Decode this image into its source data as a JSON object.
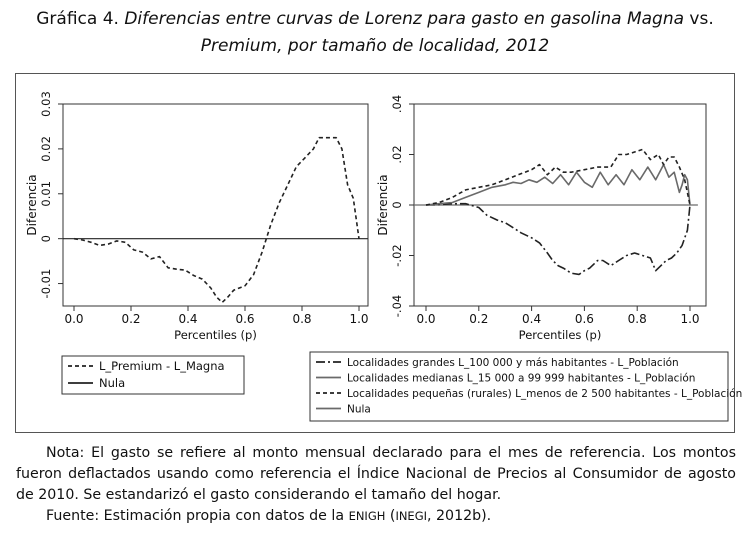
{
  "title": {
    "lead": "Gráfica 4.",
    "italic_a": "Diferencias entre curvas de Lorenz para gasto en gasolina Magna",
    "mid": "vs.",
    "italic_b": "Premium, por tamaño de localidad, 2012"
  },
  "chart_data": [
    {
      "type": "line",
      "xlabel": "Percentiles (p)",
      "ylabel": "Diferencia",
      "xlim": [
        0,
        1
      ],
      "ylim": [
        -0.015,
        0.03
      ],
      "x_ticks": [
        "0.0",
        "0.2",
        "0.4",
        "0.6",
        "0.8",
        "1.0"
      ],
      "y_ticks": [
        "-0.01",
        "0",
        "0.01",
        "0.02",
        "0.03"
      ],
      "legend_position": "bottom",
      "series": [
        {
          "name": "L_Premium - L_Magna",
          "style": "dashed",
          "color": "#222222",
          "x": [
            0,
            0.03,
            0.06,
            0.09,
            0.12,
            0.15,
            0.18,
            0.21,
            0.24,
            0.27,
            0.3,
            0.33,
            0.36,
            0.39,
            0.42,
            0.45,
            0.48,
            0.5,
            0.52,
            0.54,
            0.56,
            0.58,
            0.6,
            0.63,
            0.66,
            0.69,
            0.72,
            0.75,
            0.78,
            0.81,
            0.84,
            0.86,
            0.88,
            0.9,
            0.92,
            0.94,
            0.96,
            0.98,
            1.0
          ],
          "y": [
            0,
            -0.0003,
            -0.0008,
            -0.0015,
            -0.0012,
            -0.0005,
            -0.0008,
            -0.0025,
            -0.003,
            -0.0045,
            -0.004,
            -0.0065,
            -0.0068,
            -0.007,
            -0.0082,
            -0.009,
            -0.011,
            -0.013,
            -0.0142,
            -0.013,
            -0.0115,
            -0.011,
            -0.0105,
            -0.008,
            -0.003,
            0.003,
            0.008,
            0.012,
            0.016,
            0.018,
            0.02,
            0.0225,
            0.0225,
            0.0225,
            0.0225,
            0.02,
            0.012,
            0.009,
            0
          ]
        },
        {
          "name": "Nula",
          "style": "solid",
          "color": "#222222",
          "x": [
            0,
            1.03
          ],
          "y": [
            0,
            0
          ]
        }
      ]
    },
    {
      "type": "line",
      "xlabel": "Percentiles (p)",
      "ylabel": "Diferencia",
      "xlim": [
        0,
        1
      ],
      "ylim": [
        -0.04,
        0.04
      ],
      "x_ticks": [
        "0.0",
        "0.2",
        "0.4",
        "0.6",
        "0.8",
        "1.0"
      ],
      "y_ticks": [
        "-.04",
        "-.02",
        "0",
        ".02",
        ".04"
      ],
      "legend_position": "bottom",
      "series": [
        {
          "name": "Localidades grandes L_100 000 y más habitantes - L_Población",
          "style": "dashdot",
          "color": "#222222",
          "x": [
            0,
            0.05,
            0.1,
            0.15,
            0.2,
            0.23,
            0.27,
            0.3,
            0.33,
            0.36,
            0.4,
            0.43,
            0.46,
            0.48,
            0.5,
            0.52,
            0.55,
            0.58,
            0.6,
            0.62,
            0.65,
            0.67,
            0.7,
            0.73,
            0.76,
            0.79,
            0.82,
            0.85,
            0.87,
            0.89,
            0.91,
            0.93,
            0.95,
            0.97,
            0.99,
            1.0
          ],
          "y": [
            0,
            0.0002,
            0.0005,
            0.0005,
            -0.001,
            -0.004,
            -0.006,
            -0.007,
            -0.009,
            -0.011,
            -0.013,
            -0.015,
            -0.019,
            -0.022,
            -0.024,
            -0.025,
            -0.027,
            -0.0275,
            -0.026,
            -0.025,
            -0.022,
            -0.022,
            -0.024,
            -0.022,
            -0.02,
            -0.019,
            -0.02,
            -0.021,
            -0.026,
            -0.024,
            -0.022,
            -0.021,
            -0.019,
            -0.016,
            -0.01,
            0
          ]
        },
        {
          "name": "Localidades  medianas L_15 000 a 99 999 habitantes - L_Población",
          "style": "solid",
          "color": "#6a6a6a",
          "x": [
            0,
            0.05,
            0.1,
            0.15,
            0.2,
            0.25,
            0.3,
            0.33,
            0.36,
            0.39,
            0.42,
            0.45,
            0.48,
            0.51,
            0.54,
            0.57,
            0.6,
            0.63,
            0.66,
            0.69,
            0.72,
            0.75,
            0.78,
            0.81,
            0.84,
            0.87,
            0.9,
            0.92,
            0.94,
            0.96,
            0.97,
            0.98,
            0.99,
            1.0
          ],
          "y": [
            0,
            0.0005,
            0.001,
            0.003,
            0.005,
            0.007,
            0.008,
            0.009,
            0.0085,
            0.01,
            0.009,
            0.011,
            0.0085,
            0.012,
            0.008,
            0.013,
            0.009,
            0.007,
            0.013,
            0.008,
            0.012,
            0.008,
            0.014,
            0.01,
            0.015,
            0.01,
            0.016,
            0.011,
            0.013,
            0.005,
            0.008,
            0.012,
            0.01,
            0
          ]
        },
        {
          "name": "Localidades pequeñas (rurales) L_menos de 2 500 habitantes - L_Población",
          "style": "dashed",
          "color": "#222222",
          "x": [
            0,
            0.05,
            0.1,
            0.15,
            0.2,
            0.25,
            0.3,
            0.35,
            0.4,
            0.43,
            0.46,
            0.49,
            0.52,
            0.55,
            0.6,
            0.65,
            0.7,
            0.73,
            0.76,
            0.79,
            0.82,
            0.85,
            0.88,
            0.9,
            0.92,
            0.94,
            0.96,
            0.98,
            1.0
          ],
          "y": [
            0,
            0.001,
            0.003,
            0.006,
            0.007,
            0.008,
            0.01,
            0.012,
            0.014,
            0.016,
            0.012,
            0.015,
            0.013,
            0.013,
            0.014,
            0.015,
            0.015,
            0.02,
            0.02,
            0.021,
            0.022,
            0.018,
            0.02,
            0.016,
            0.019,
            0.019,
            0.015,
            0.01,
            0
          ]
        },
        {
          "name": "Nula",
          "style": "solid",
          "color": "#6a6a6a",
          "x": [
            0,
            1.03
          ],
          "y": [
            0,
            0
          ]
        }
      ]
    }
  ],
  "note": {
    "nota": "Nota: El gasto se refiere al monto mensual declarado para el mes de referencia. Los montos fueron deflactados usando como referencia el Índice Nacional de Precios al Consumidor de agosto de 2010. Se estandarizó el gasto considerando el tamaño del hogar.",
    "fuente_prefix": "Fuente: Estimación propia con datos de la ",
    "fuente_enigh": "ENIGH",
    "fuente_paren_open": " (",
    "fuente_inegi": "INEGI",
    "fuente_suffix": ", 2012b)."
  }
}
